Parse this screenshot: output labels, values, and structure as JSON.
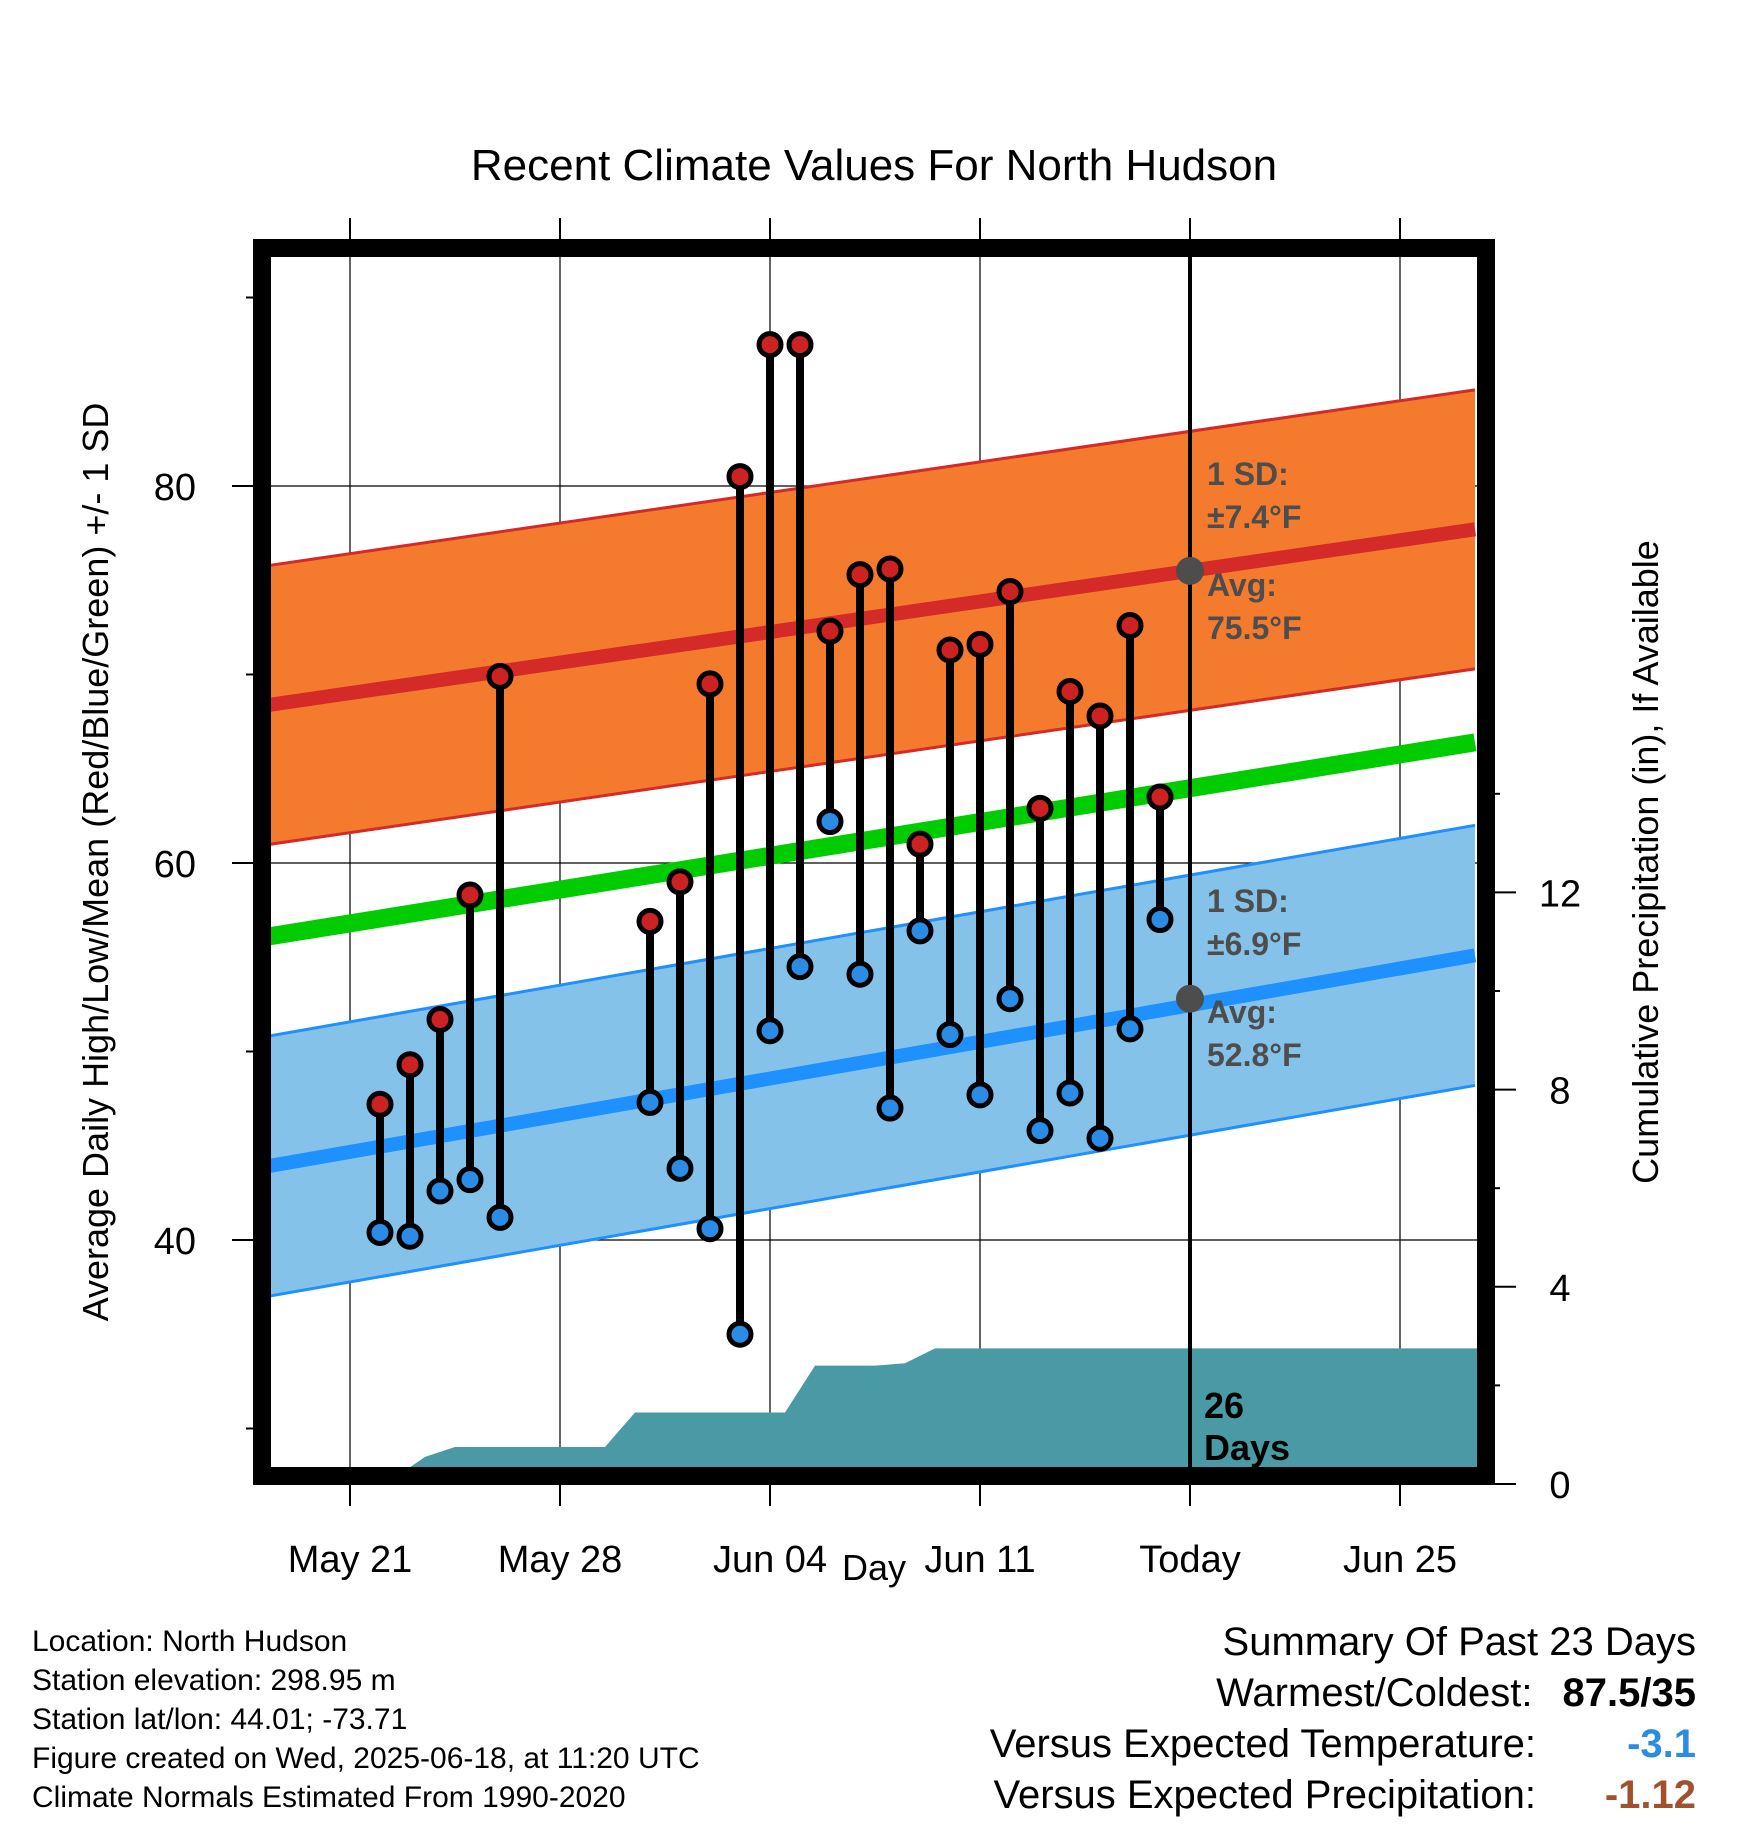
{
  "chart_data": {
    "type": "line",
    "title": "Recent Climate Values For North Hudson",
    "xlabel": "Day",
    "ylabel_left": "Average Daily High/Low/Mean (Red/Blue/Green) +/- 1 SD",
    "ylabel_right": "Cumulative Precipitation (in), If Available",
    "x_ticks": [
      "May 21",
      "May 28",
      "Jun 04",
      "Jun 11",
      "Today",
      "Jun 25"
    ],
    "y_left_ticks": [
      "40",
      "60",
      "80"
    ],
    "y_right_ticks": [
      "0",
      "4",
      "8",
      "12"
    ],
    "y_left_range": [
      27.5,
      92.5
    ],
    "y_right_range": [
      0,
      24
    ],
    "grid": true,
    "highs": [
      47.2,
      49.3,
      51.7,
      58.3,
      69.9,
      null,
      null,
      null,
      null,
      56.9,
      59.0,
      69.5,
      80.5,
      87.5,
      87.5,
      72.3,
      75.3,
      75.6,
      61.0,
      71.3,
      71.6,
      74.4,
      62.9,
      69.1,
      67.8,
      72.6,
      63.5
    ],
    "lows": [
      40.4,
      40.2,
      42.6,
      43.2,
      41.2,
      null,
      null,
      null,
      null,
      47.3,
      43.8,
      40.6,
      35.0,
      51.1,
      54.5,
      62.2,
      54.1,
      47.0,
      56.4,
      50.9,
      47.7,
      52.8,
      45.8,
      47.8,
      45.4,
      51.2,
      57.0
    ],
    "normal_high": {
      "start": 68.2,
      "end": 77.7,
      "sd": 7.4
    },
    "normal_low": {
      "start": 43.7,
      "end": 55.1,
      "sd": 6.9
    },
    "normal_mean": {
      "start": 55.9,
      "end": 66.4
    },
    "precip_cumulative": [
      0,
      0,
      0.13,
      0.55,
      0.75,
      0.75,
      0.75,
      0.75,
      0.75,
      0.75,
      1.45,
      1.45,
      1.45,
      1.45,
      1.45,
      1.45,
      2.4,
      2.4,
      2.4,
      2.45,
      2.75,
      2.75,
      2.75,
      2.75,
      2.75,
      2.75,
      2.75,
      2.75,
      2.75,
      2.75,
      2.75,
      2.75,
      2.75,
      2.75,
      2.75,
      2.75,
      2.75,
      2.75,
      2.75,
      2.75,
      2.75
    ],
    "today_annotations": {
      "high_sd": "1 SD:",
      "high_sd_val": "±7.4°F",
      "high_avg": "Avg:",
      "high_avg_val": "75.5°F",
      "low_sd": "1 SD:",
      "low_sd_val": "±6.9°F",
      "low_avg": "Avg:",
      "low_avg_val": "52.8°F",
      "high_avg_num": 75.5,
      "low_avg_num": 52.8
    },
    "days_count": "26",
    "days_label": "Days"
  },
  "colors": {
    "high_band": "#f47a2e",
    "high_line": "#d42a28",
    "low_band": "#85c2ea",
    "low_line": "#1e90ff",
    "mean_line": "#00cc00",
    "precip": "#4a9aa5",
    "high_marker": "#cc2222",
    "low_marker": "#2b8ce6",
    "annot_dot": "#4d4d4d",
    "temp_anomaly": "#2b8ce6",
    "precip_anomaly": "#a0522d"
  },
  "footer": {
    "location": "Location: North Hudson",
    "elevation": "Station elevation: 298.95 m",
    "latlon": "Station lat/lon: 44.01; -73.71",
    "created": "Figure created on Wed, 2025-06-18, at 11:20 UTC",
    "normals": "Climate Normals Estimated From 1990-2020"
  },
  "summary": {
    "heading": "Summary Of Past 23 Days",
    "warm_cold_label": "Warmest/Coldest:",
    "warm_cold_value": "87.5/35",
    "temp_label": "Versus Expected Temperature:",
    "temp_value": "-3.1",
    "precip_label": "Versus Expected Precipitation:",
    "precip_value": "-1.12"
  }
}
